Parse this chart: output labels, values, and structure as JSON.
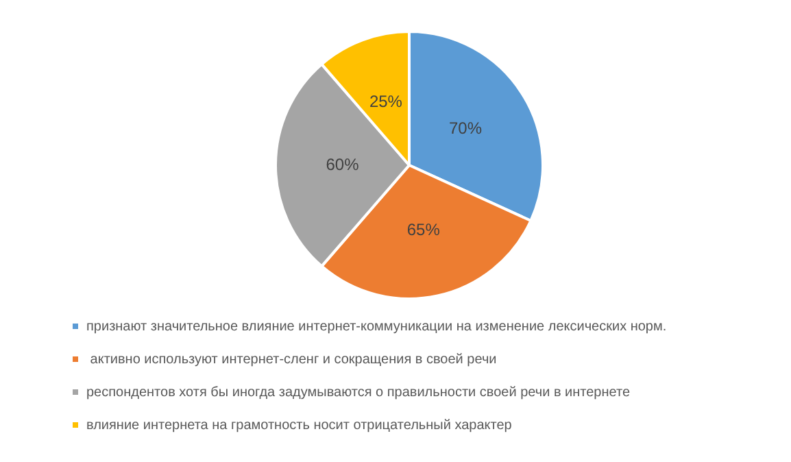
{
  "chart_data": {
    "type": "pie",
    "categories": [
      "признают значительное влияние интернет-коммуникации на изменение лексических норм.",
      " активно используют интернет-сленг и сокращения в своей речи",
      "респондентов хотя бы иногда задумываются о правильности своей речи в интернете",
      "влияние интернета на грамотность носит отрицательный характер"
    ],
    "values": [
      70,
      65,
      60,
      25
    ],
    "colors": [
      "#5b9bd5",
      "#ed7d31",
      "#a5a5a5",
      "#ffc000"
    ],
    "value_labels": [
      "70%",
      "65%",
      "60%",
      "25%"
    ],
    "legend": "bottom"
  }
}
